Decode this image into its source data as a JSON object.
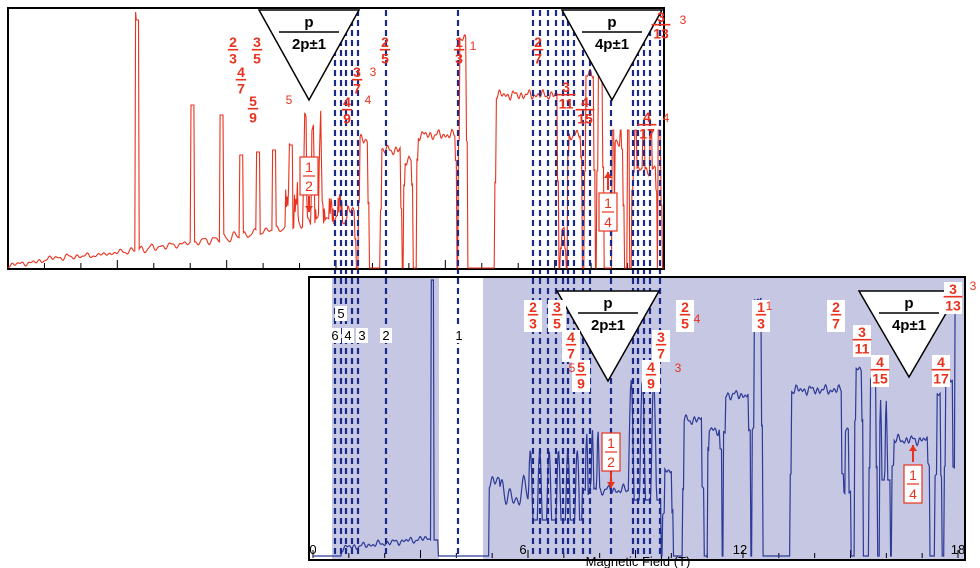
{
  "chart_data": {
    "type": "line",
    "xlabel": "Magnetic Field (T)",
    "x_ticks": [
      "0",
      "6",
      "12",
      "18"
    ],
    "xlim": [
      0,
      18
    ],
    "colors": {
      "top_trace": "#e8321e",
      "bottom_trace": "#2e3a96",
      "shading": "#c5c7e3",
      "dashed_lines": "#1a2a8a",
      "fraction_text": "#e8321e"
    },
    "top_panel": {
      "series_color": "red",
      "triangle_labels": [
        {
          "num": "p",
          "den": "2p±1"
        },
        {
          "num": "p",
          "den": "4p±1"
        }
      ],
      "fractions": [
        {
          "num": "2",
          "den": "3"
        },
        {
          "num": "3",
          "den": "5"
        },
        {
          "num": "4",
          "den": "7"
        },
        {
          "num": "5",
          "den": "9"
        },
        {
          "num": "4",
          "den": "9"
        },
        {
          "num": "3",
          "den": "7"
        },
        {
          "num": "2",
          "den": "5"
        },
        {
          "num": "1",
          "den": "3"
        },
        {
          "num": "2",
          "den": "7"
        },
        {
          "num": "3",
          "den": "11"
        },
        {
          "num": "4",
          "den": "15"
        },
        {
          "num": "4",
          "den": "17"
        },
        {
          "num": "3",
          "den": "13"
        }
      ],
      "side_numbers": [
        "5",
        "4",
        "3",
        "1",
        "3",
        "4"
      ],
      "boxed": [
        {
          "num": "1",
          "den": "2"
        },
        {
          "num": "1",
          "den": "4"
        }
      ]
    },
    "bottom_panel": {
      "series_color": "blue",
      "filling_factor_labels": [
        "5",
        "6",
        "4",
        "3",
        "2",
        "1"
      ],
      "triangle_labels": [
        {
          "num": "p",
          "den": "2p±1"
        },
        {
          "num": "p",
          "den": "4p±1"
        }
      ],
      "fractions": [
        {
          "num": "2",
          "den": "3"
        },
        {
          "num": "3",
          "den": "5"
        },
        {
          "num": "4",
          "den": "7"
        },
        {
          "num": "5",
          "den": "9"
        },
        {
          "num": "4",
          "den": "9"
        },
        {
          "num": "3",
          "den": "7"
        },
        {
          "num": "2",
          "den": "5"
        },
        {
          "num": "1",
          "den": "3"
        },
        {
          "num": "2",
          "den": "7"
        },
        {
          "num": "3",
          "den": "11"
        },
        {
          "num": "4",
          "den": "15"
        },
        {
          "num": "4",
          "den": "17"
        },
        {
          "num": "3",
          "den": "13"
        }
      ],
      "side_numbers": [
        "5",
        "3",
        "4",
        "1",
        "3"
      ],
      "boxed": [
        {
          "num": "1",
          "den": "2"
        },
        {
          "num": "1",
          "den": "4"
        }
      ]
    }
  }
}
